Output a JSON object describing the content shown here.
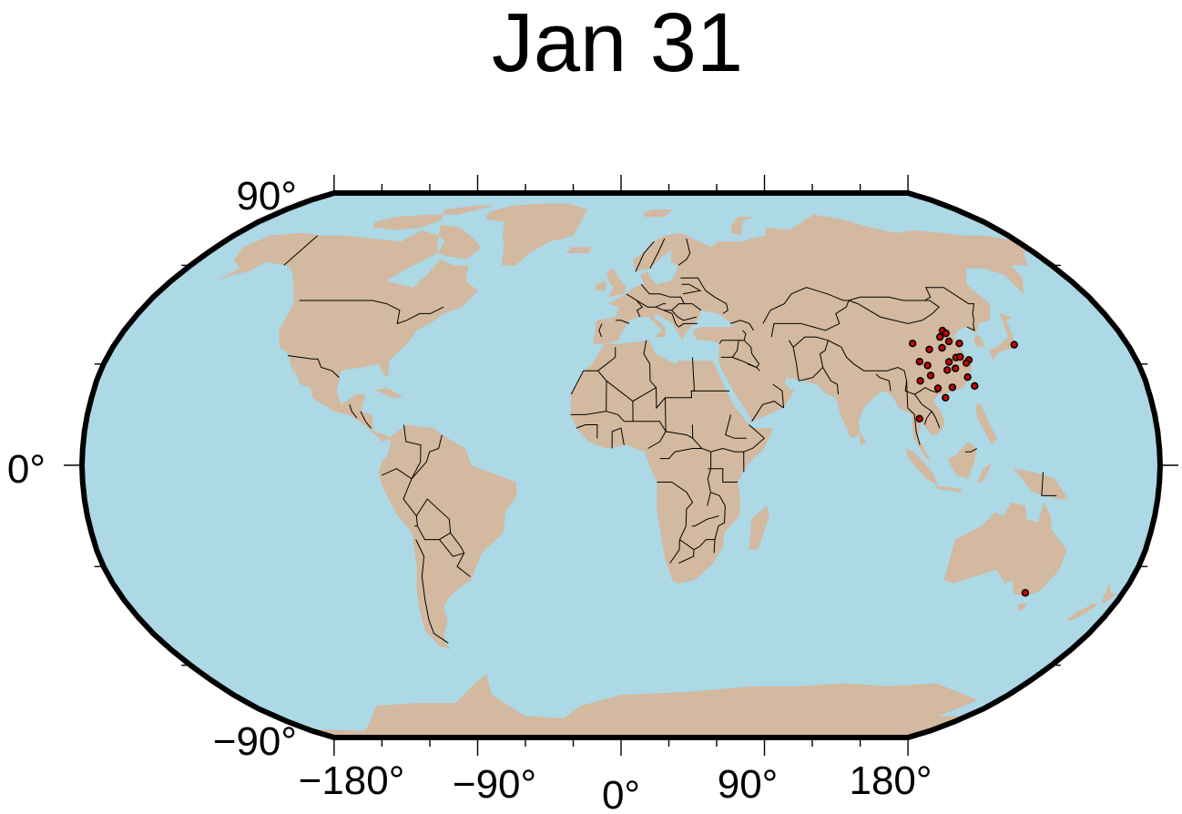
{
  "title": "Jan 31",
  "map": {
    "projection": "Robinson",
    "ocean_color": "#add8e6",
    "land_color": "#d2b99f",
    "border_color": "#000000",
    "frame_color": "#000000",
    "x_tick_labels": [
      "−180°",
      "−90°",
      "0°",
      "90°",
      "180°"
    ],
    "y_tick_labels": [
      "90°",
      "0°",
      "−90°"
    ]
  },
  "chart_data": {
    "type": "scatter",
    "title": "Jan 31",
    "xlabel": "",
    "ylabel": "",
    "xlim": [
      -180,
      180
    ],
    "ylim": [
      -90,
      90
    ],
    "marker_color": "#cc0000",
    "points": [
      {
        "lon": 103.8,
        "lat": 36.1
      },
      {
        "lon": 108.9,
        "lat": 34.3
      },
      {
        "lon": 113.6,
        "lat": 34.8
      },
      {
        "lon": 116.4,
        "lat": 39.9
      },
      {
        "lon": 117.2,
        "lat": 39.1
      },
      {
        "lon": 114.5,
        "lat": 38.0
      },
      {
        "lon": 117.0,
        "lat": 36.7
      },
      {
        "lon": 120.4,
        "lat": 36.1
      },
      {
        "lon": 117.3,
        "lat": 31.9
      },
      {
        "lon": 118.8,
        "lat": 32.1
      },
      {
        "lon": 121.5,
        "lat": 31.2
      },
      {
        "lon": 120.2,
        "lat": 30.3
      },
      {
        "lon": 114.3,
        "lat": 30.6
      },
      {
        "lon": 112.9,
        "lat": 28.2
      },
      {
        "lon": 115.9,
        "lat": 28.7
      },
      {
        "lon": 104.1,
        "lat": 30.7
      },
      {
        "lon": 106.5,
        "lat": 29.6
      },
      {
        "lon": 113.3,
        "lat": 23.1
      },
      {
        "lon": 119.3,
        "lat": 26.1
      },
      {
        "lon": 110.3,
        "lat": 20.0
      },
      {
        "lon": 102.7,
        "lat": 25.0
      },
      {
        "lon": 100.5,
        "lat": 13.8
      },
      {
        "lon": 139.7,
        "lat": 35.7
      },
      {
        "lon": 145.0,
        "lat": -37.8
      },
      {
        "lon": 121.0,
        "lat": 23.5
      },
      {
        "lon": 106.7,
        "lat": 26.6
      },
      {
        "lon": 108.3,
        "lat": 22.8
      }
    ]
  }
}
